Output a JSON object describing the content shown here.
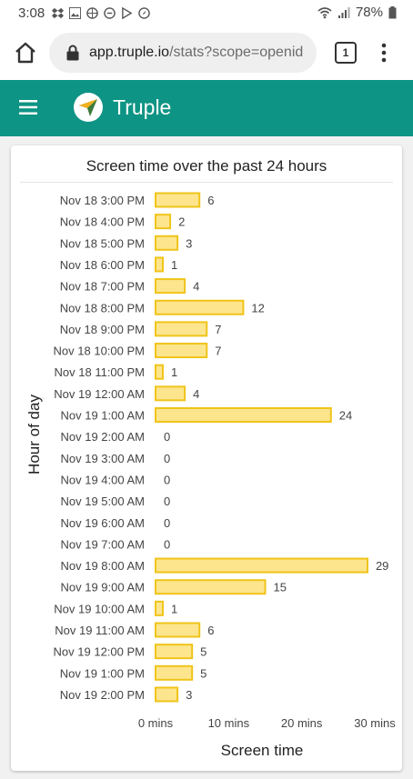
{
  "status_bar": {
    "time": "3:08",
    "battery": "78%"
  },
  "browser": {
    "url_host": "app.truple.io",
    "url_path": "/stats?scope=openid",
    "tab_count": "1"
  },
  "app": {
    "title": "Truple"
  },
  "colors": {
    "app_bar": "#0e9484",
    "bar_fill": "#fde58e",
    "bar_stroke": "#f0c419"
  },
  "chart_data": {
    "type": "bar",
    "orientation": "horizontal",
    "title": "Screen time over the past 24 hours",
    "xlabel": "Screen time",
    "ylabel": "Hour of day",
    "xlim": [
      0,
      30
    ],
    "x_ticks": [
      "0 mins",
      "10 mins",
      "20 mins",
      "30 mins"
    ],
    "grid": false,
    "categories": [
      "Nov 18 3:00 PM",
      "Nov 18 4:00 PM",
      "Nov 18 5:00 PM",
      "Nov 18 6:00 PM",
      "Nov 18 7:00 PM",
      "Nov 18 8:00 PM",
      "Nov 18 9:00 PM",
      "Nov 18 10:00 PM",
      "Nov 18 11:00 PM",
      "Nov 19 12:00 AM",
      "Nov 19 1:00 AM",
      "Nov 19 2:00 AM",
      "Nov 19 3:00 AM",
      "Nov 19 4:00 AM",
      "Nov 19 5:00 AM",
      "Nov 19 6:00 AM",
      "Nov 19 7:00 AM",
      "Nov 19 8:00 AM",
      "Nov 19 9:00 AM",
      "Nov 19 10:00 AM",
      "Nov 19 11:00 AM",
      "Nov 19 12:00 PM",
      "Nov 19 1:00 PM",
      "Nov 19 2:00 PM"
    ],
    "values": [
      6,
      2,
      3,
      1,
      4,
      12,
      7,
      7,
      1,
      4,
      24,
      0,
      0,
      0,
      0,
      0,
      0,
      29,
      15,
      1,
      6,
      5,
      5,
      3
    ]
  }
}
